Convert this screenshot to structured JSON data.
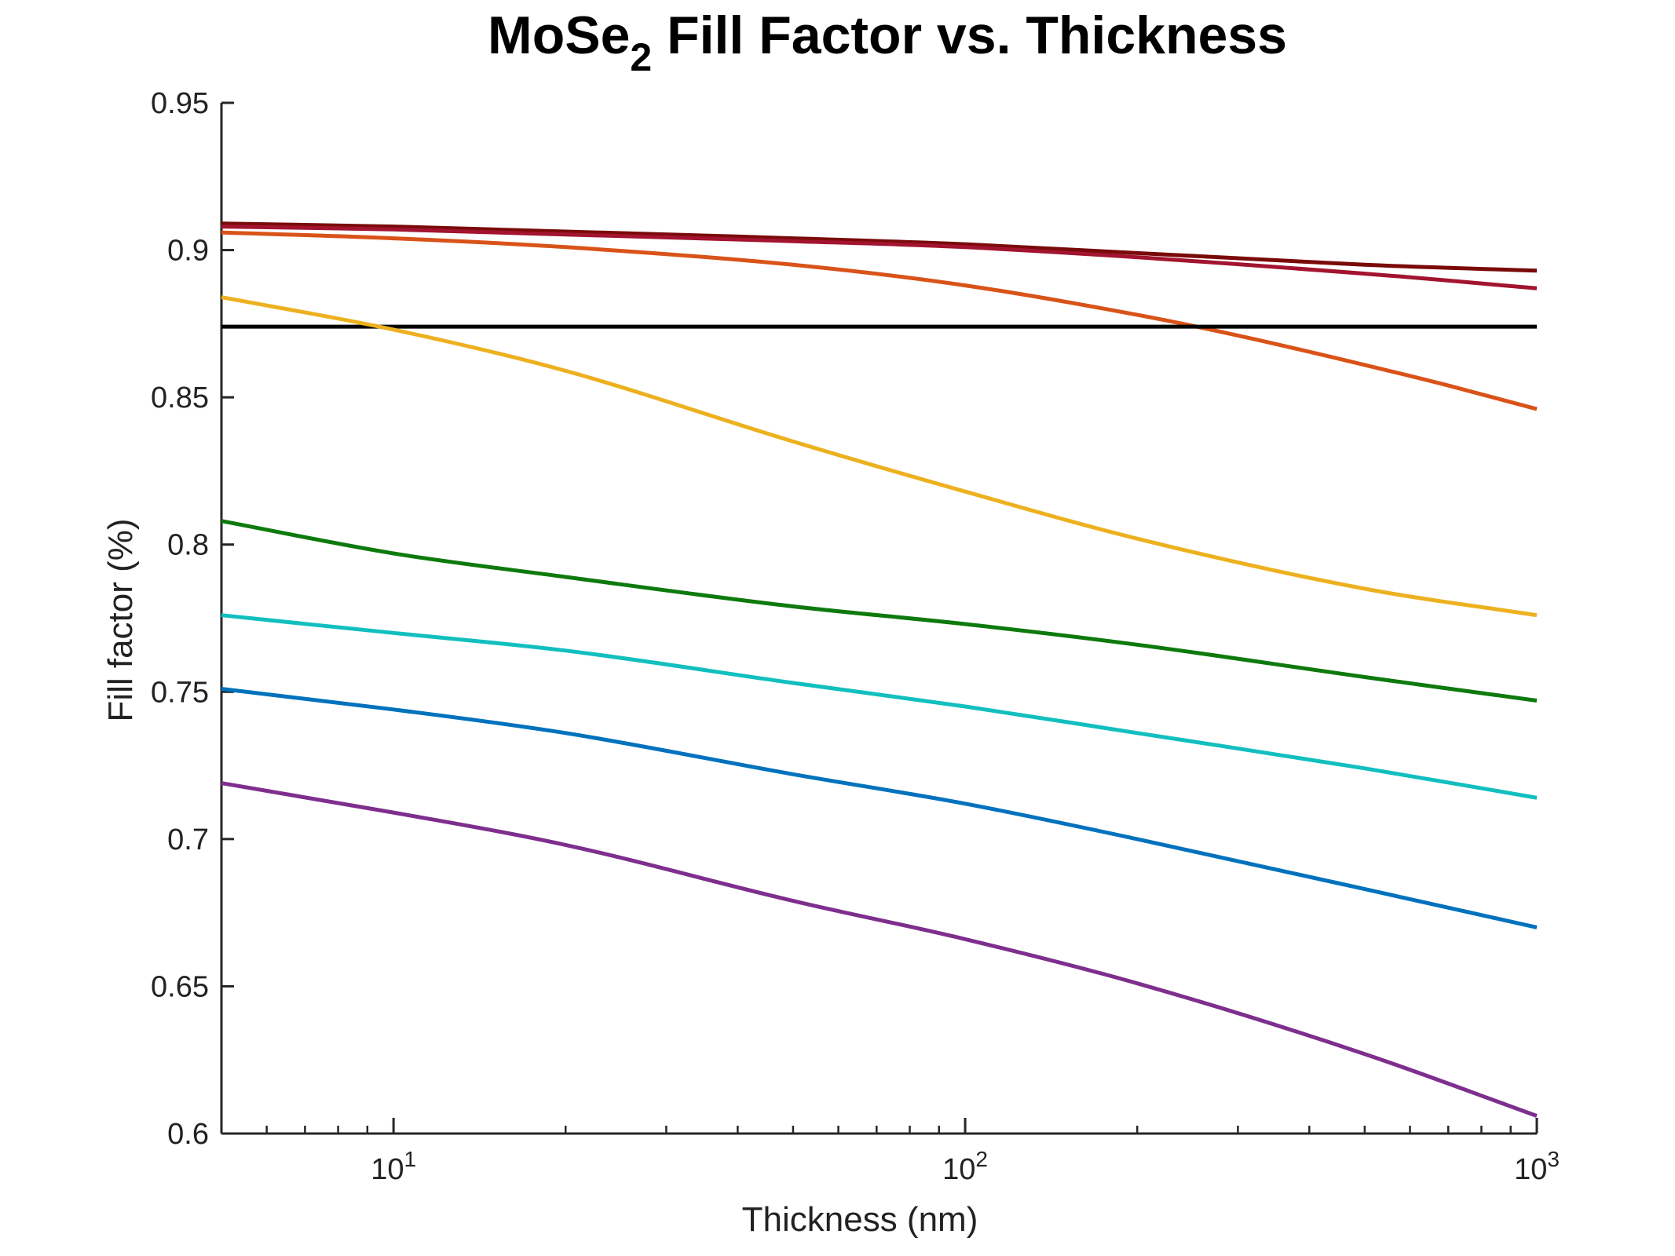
{
  "chart_data": {
    "type": "line",
    "title": {
      "main": "MoSe",
      "subscript": "2",
      "rest": " Fill Factor vs. Thickness"
    },
    "xlabel": "Thickness (nm)",
    "ylabel": "Fill factor (%)",
    "xscale": "log",
    "xlim": [
      5,
      1000
    ],
    "ylim": [
      0.6,
      0.95
    ],
    "grid": false,
    "legend": "none",
    "yticks": [
      0.6,
      0.65,
      0.7,
      0.75,
      0.8,
      0.85,
      0.9,
      0.95
    ],
    "ytick_labels": [
      "0.6",
      "0.65",
      "0.7",
      "0.75",
      "0.8",
      "0.85",
      "0.9",
      "0.95"
    ],
    "xticks": [
      {
        "value": 10,
        "base": "10",
        "exp": "1"
      },
      {
        "value": 100,
        "base": "10",
        "exp": "2"
      },
      {
        "value": 1000,
        "base": "10",
        "exp": "3"
      }
    ],
    "series": [
      {
        "color": "#7a0a0a",
        "x": [
          5,
          10,
          50,
          100,
          500,
          1000
        ],
        "y": [
          0.909,
          0.908,
          0.904,
          0.902,
          0.895,
          0.893
        ]
      },
      {
        "color": "#a2142f",
        "x": [
          5,
          10,
          50,
          100,
          500,
          1000
        ],
        "y": [
          0.908,
          0.907,
          0.903,
          0.901,
          0.892,
          0.887
        ]
      },
      {
        "color": "#d95319",
        "x": [
          5,
          10,
          20,
          50,
          100,
          200,
          300,
          500,
          700,
          1000
        ],
        "y": [
          0.906,
          0.904,
          0.901,
          0.895,
          0.888,
          0.878,
          0.871,
          0.861,
          0.854,
          0.846
        ]
      },
      {
        "color": "#000000",
        "x": [
          5,
          1000
        ],
        "y": [
          0.874,
          0.874
        ]
      },
      {
        "color": "#edb120",
        "x": [
          5,
          10,
          20,
          50,
          100,
          200,
          500,
          1000
        ],
        "y": [
          0.884,
          0.873,
          0.859,
          0.835,
          0.818,
          0.802,
          0.785,
          0.776
        ]
      },
      {
        "color": "#0e7a0d",
        "x": [
          5,
          10,
          20,
          50,
          100,
          200,
          500,
          1000
        ],
        "y": [
          0.808,
          0.797,
          0.789,
          0.779,
          0.773,
          0.766,
          0.755,
          0.747
        ]
      },
      {
        "color": "#12bfbf",
        "x": [
          5,
          10,
          20,
          50,
          100,
          200,
          500,
          1000
        ],
        "y": [
          0.776,
          0.77,
          0.764,
          0.753,
          0.745,
          0.736,
          0.724,
          0.714
        ]
      },
      {
        "color": "#0072bd",
        "x": [
          5,
          10,
          20,
          50,
          100,
          200,
          500,
          1000
        ],
        "y": [
          0.751,
          0.744,
          0.736,
          0.722,
          0.712,
          0.7,
          0.683,
          0.67
        ]
      },
      {
        "color": "#7e2f8e",
        "x": [
          5,
          10,
          20,
          50,
          100,
          200,
          500,
          1000
        ],
        "y": [
          0.719,
          0.709,
          0.698,
          0.679,
          0.666,
          0.651,
          0.627,
          0.606
        ]
      }
    ]
  }
}
